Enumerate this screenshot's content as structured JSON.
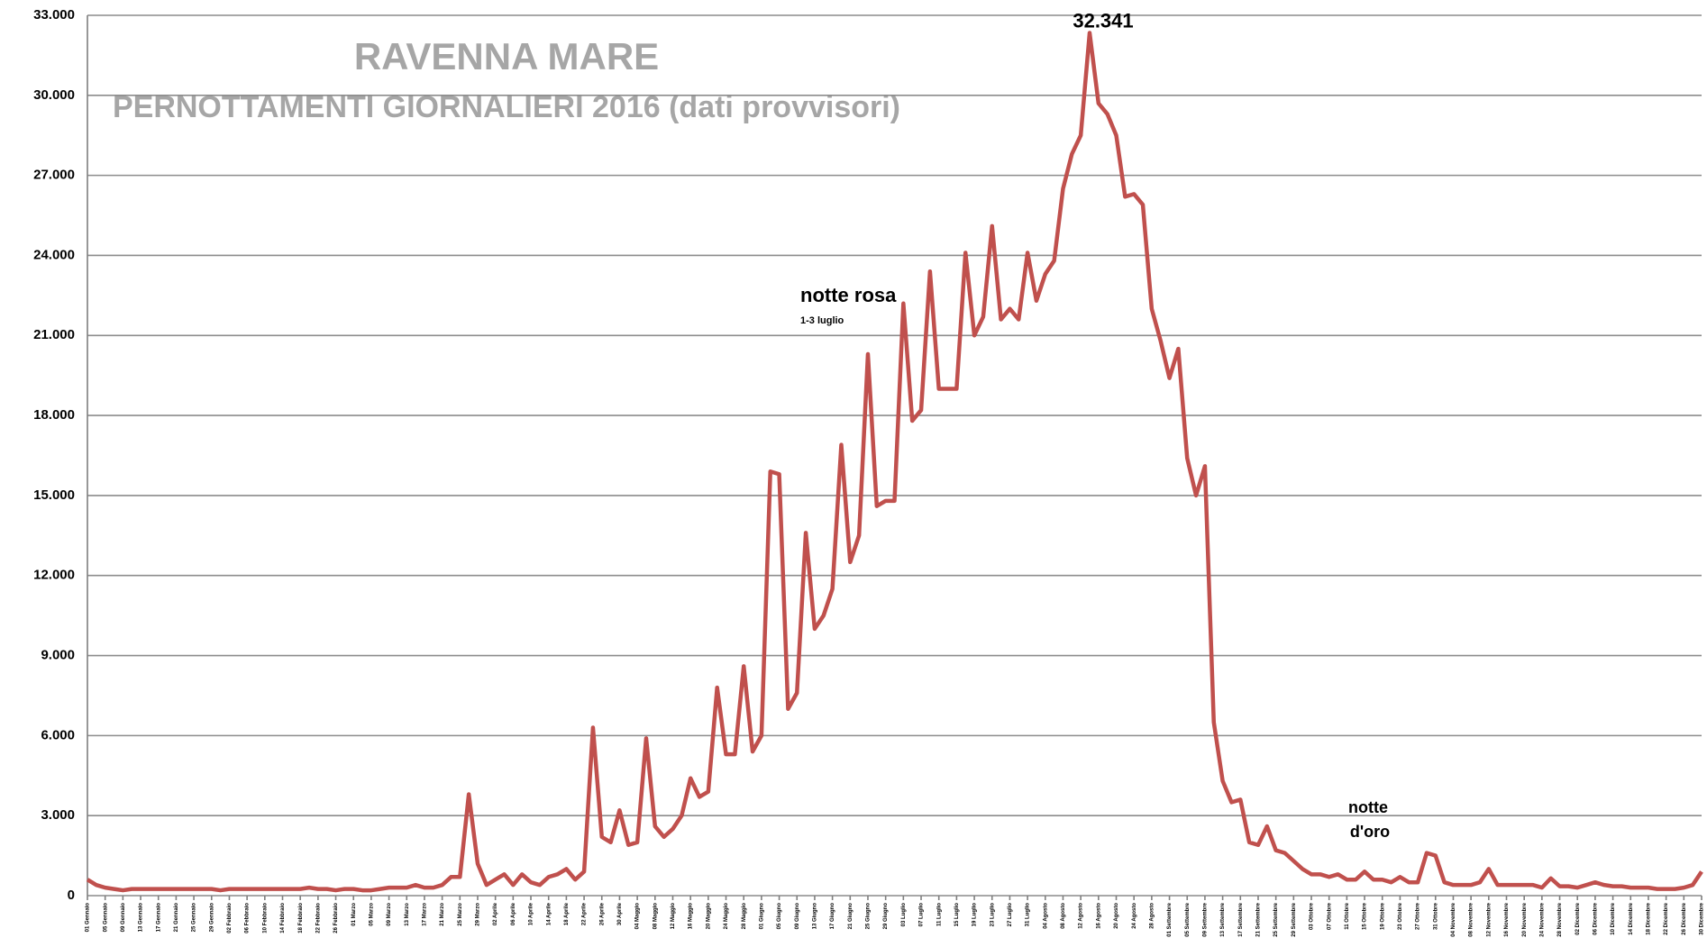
{
  "chart_data": {
    "type": "line",
    "title": "RAVENNA MARE",
    "subtitle": "PERNOTTAMENTI GIORNALIERI 2016 (dati provvisori)",
    "categories": [
      "01 Gennaio",
      null,
      "05 Gennaio",
      null,
      "09 Gennaio",
      null,
      "13 Gennaio",
      null,
      "17 Gennaio",
      null,
      "21 Gennaio",
      null,
      "25 Gennaio",
      null,
      "29 Gennaio",
      null,
      "02 Febbraio",
      null,
      "06 Febbraio",
      null,
      "10 Febbraio",
      null,
      "14 Febbraio",
      null,
      "18 Febbraio",
      null,
      "22 Febbraio",
      null,
      "26 Febbraio",
      null,
      "01 Marzo",
      null,
      "05 Marzo",
      null,
      "09 Marzo",
      null,
      "13 Marzo",
      null,
      "17 Marzo",
      null,
      "21 Marzo",
      null,
      "25 Marzo",
      null,
      "29 Marzo",
      null,
      "02 Aprile",
      null,
      "06 Aprile",
      null,
      "10 Aprile",
      null,
      "14 Aprile",
      null,
      "18 Aprile",
      null,
      "22 Aprile",
      null,
      "26 Aprile",
      null,
      "30 Aprile",
      null,
      "04 Maggio",
      null,
      "08 Maggio",
      null,
      "12 Maggio",
      null,
      "16 Maggio",
      null,
      "20 Maggio",
      null,
      "24 Maggio",
      null,
      "28 Maggio",
      null,
      "01 Giugno",
      null,
      "05 Giugno",
      null,
      "09 Giugno",
      null,
      "13 Giugno",
      null,
      "17 Giugno",
      null,
      "21 Giugno",
      null,
      "25 Giugno",
      null,
      "29 Giugno",
      null,
      "03 Luglio",
      null,
      "07 Luglio",
      null,
      "11 Luglio",
      null,
      "15 Luglio",
      null,
      "19 Luglio",
      null,
      "23 Luglio",
      null,
      "27 Luglio",
      null,
      "31 Luglio",
      null,
      "04 Agosto",
      null,
      "08 Agosto",
      null,
      "12 Agosto",
      null,
      "16 Agosto",
      null,
      "20 Agosto",
      null,
      "24 Agosto",
      null,
      "28 Agosto",
      null,
      "01 Settembre",
      null,
      "05 Settembre",
      null,
      "09 Settembre",
      null,
      "13 Settembre",
      null,
      "17 Settembre",
      null,
      "21 Settembre",
      null,
      "25 Settembre",
      null,
      "29 Settembre",
      null,
      "03 Ottobre",
      null,
      "07 Ottobre",
      null,
      "11 Ottobre",
      null,
      "15 Ottobre",
      null,
      "19 Ottobre",
      null,
      "23 Ottobre",
      null,
      "27 Ottobre",
      null,
      "31 Ottobre",
      null,
      "04 Novembre",
      null,
      "08 Novembre",
      null,
      "12 Novembre",
      null,
      "16 Novembre",
      null,
      "20 Novembre",
      null,
      "24 Novembre",
      null,
      "28 Novembre",
      null,
      "02 Dicembre",
      null,
      "06 Dicembre",
      null,
      "10 Dicembre",
      null,
      "14 Dicembre",
      null,
      "18 Dicembre",
      null,
      "22 Dicembre",
      null,
      "26 Dicembre",
      null,
      "30 Dicembre"
    ],
    "series": [
      {
        "color": "#c0504d",
        "values": [
          600,
          400,
          300,
          250,
          200,
          250,
          250,
          250,
          250,
          250,
          250,
          250,
          250,
          250,
          250,
          200,
          250,
          250,
          250,
          250,
          250,
          250,
          250,
          250,
          250,
          300,
          250,
          250,
          200,
          250,
          250,
          200,
          200,
          250,
          300,
          300,
          300,
          400,
          300,
          300,
          400,
          700,
          700,
          3800,
          1200,
          400,
          600,
          800,
          400,
          800,
          500,
          400,
          700,
          800,
          1000,
          600,
          900,
          6300,
          2200,
          2000,
          3200,
          1900,
          2000,
          5900,
          2600,
          2200,
          2500,
          3000,
          4400,
          3700,
          3900,
          7800,
          5300,
          5300,
          8600,
          5400,
          6000,
          15900,
          15800,
          7000,
          7600,
          13600,
          10000,
          10500,
          11500,
          16900,
          12500,
          13500,
          20300,
          14600,
          14800,
          14800,
          22200,
          17800,
          18200,
          23400,
          19000,
          19000,
          19000,
          24100,
          21000,
          21700,
          25100,
          21600,
          22000,
          21600,
          24100,
          22300,
          23300,
          23800,
          26500,
          27800,
          28500,
          32341,
          29700,
          29300,
          28500,
          26200,
          26300,
          25900,
          22000,
          20800,
          19400,
          20500,
          16400,
          15000,
          16100,
          6500,
          4300,
          3500,
          3600,
          2000,
          1900,
          2600,
          1700,
          1600,
          1300,
          1000,
          800,
          800,
          700,
          800,
          600,
          600,
          900,
          600,
          600,
          500,
          700,
          500,
          500,
          1600,
          1500,
          500,
          400,
          400,
          400,
          500,
          1000,
          400,
          400,
          400,
          400,
          400,
          300,
          650,
          350,
          350,
          300,
          400,
          500,
          400,
          350,
          350,
          300,
          300,
          300,
          250,
          250,
          250,
          300,
          400,
          900
        ],
        "value_labels": [
          null,
          null,
          null,
          null,
          null,
          null,
          null,
          null,
          null,
          null,
          null,
          null,
          null,
          null,
          null,
          null,
          null,
          null,
          null,
          null,
          null,
          null,
          null,
          null,
          null,
          null,
          null,
          null,
          null,
          null,
          null,
          null,
          null,
          null,
          null,
          null,
          null,
          null,
          null,
          null,
          null,
          null,
          null,
          null,
          null,
          null,
          null,
          null,
          null,
          null,
          null,
          null,
          null,
          null,
          null,
          null,
          null,
          null,
          null,
          null,
          null,
          null,
          null,
          null,
          null,
          null,
          null,
          null,
          null,
          null,
          null,
          null,
          null,
          null,
          null,
          null,
          null,
          null,
          null,
          null,
          null,
          null,
          null,
          null,
          null,
          null,
          null,
          null,
          null,
          null,
          null,
          null,
          null,
          null,
          null,
          null,
          null,
          null,
          null,
          null,
          null,
          null,
          null,
          null,
          null,
          null,
          null,
          null,
          null,
          null,
          null,
          null,
          null,
          "32.341",
          null,
          null,
          null,
          null,
          null,
          null,
          null,
          null,
          null,
          null,
          null,
          null,
          null,
          null,
          null,
          null,
          null,
          null,
          null,
          null,
          null,
          null,
          null,
          null,
          null,
          null,
          null,
          null,
          null,
          null,
          null,
          null,
          null,
          null,
          null,
          null,
          null,
          null,
          null,
          null,
          null,
          null,
          null,
          null,
          null,
          null,
          null,
          null,
          null,
          null,
          null,
          null,
          null,
          null,
          null,
          null,
          null,
          null,
          null,
          null,
          null,
          null,
          null,
          null,
          null,
          null,
          null,
          null,
          null
        ]
      }
    ],
    "annotations": [
      "notte rosa",
      "1-3 luglio",
      "notte",
      "d'oro"
    ],
    "ylim": [
      0,
      33000
    ],
    "yticks": [
      {
        "value": 0,
        "label": "0"
      },
      {
        "value": 3000,
        "label": "3.000"
      },
      {
        "value": 6000,
        "label": "6.000"
      },
      {
        "value": 9000,
        "label": "9.000"
      },
      {
        "value": 12000,
        "label": "12.000"
      },
      {
        "value": 15000,
        "label": "15.000"
      },
      {
        "value": 18000,
        "label": "18.000"
      },
      {
        "value": 21000,
        "label": "21.000"
      },
      {
        "value": 24000,
        "label": "24.000"
      },
      {
        "value": 27000,
        "label": "27.000"
      },
      {
        "value": 30000,
        "label": "30.000"
      },
      {
        "value": 33000,
        "label": "33.000"
      }
    ],
    "grid": true
  }
}
